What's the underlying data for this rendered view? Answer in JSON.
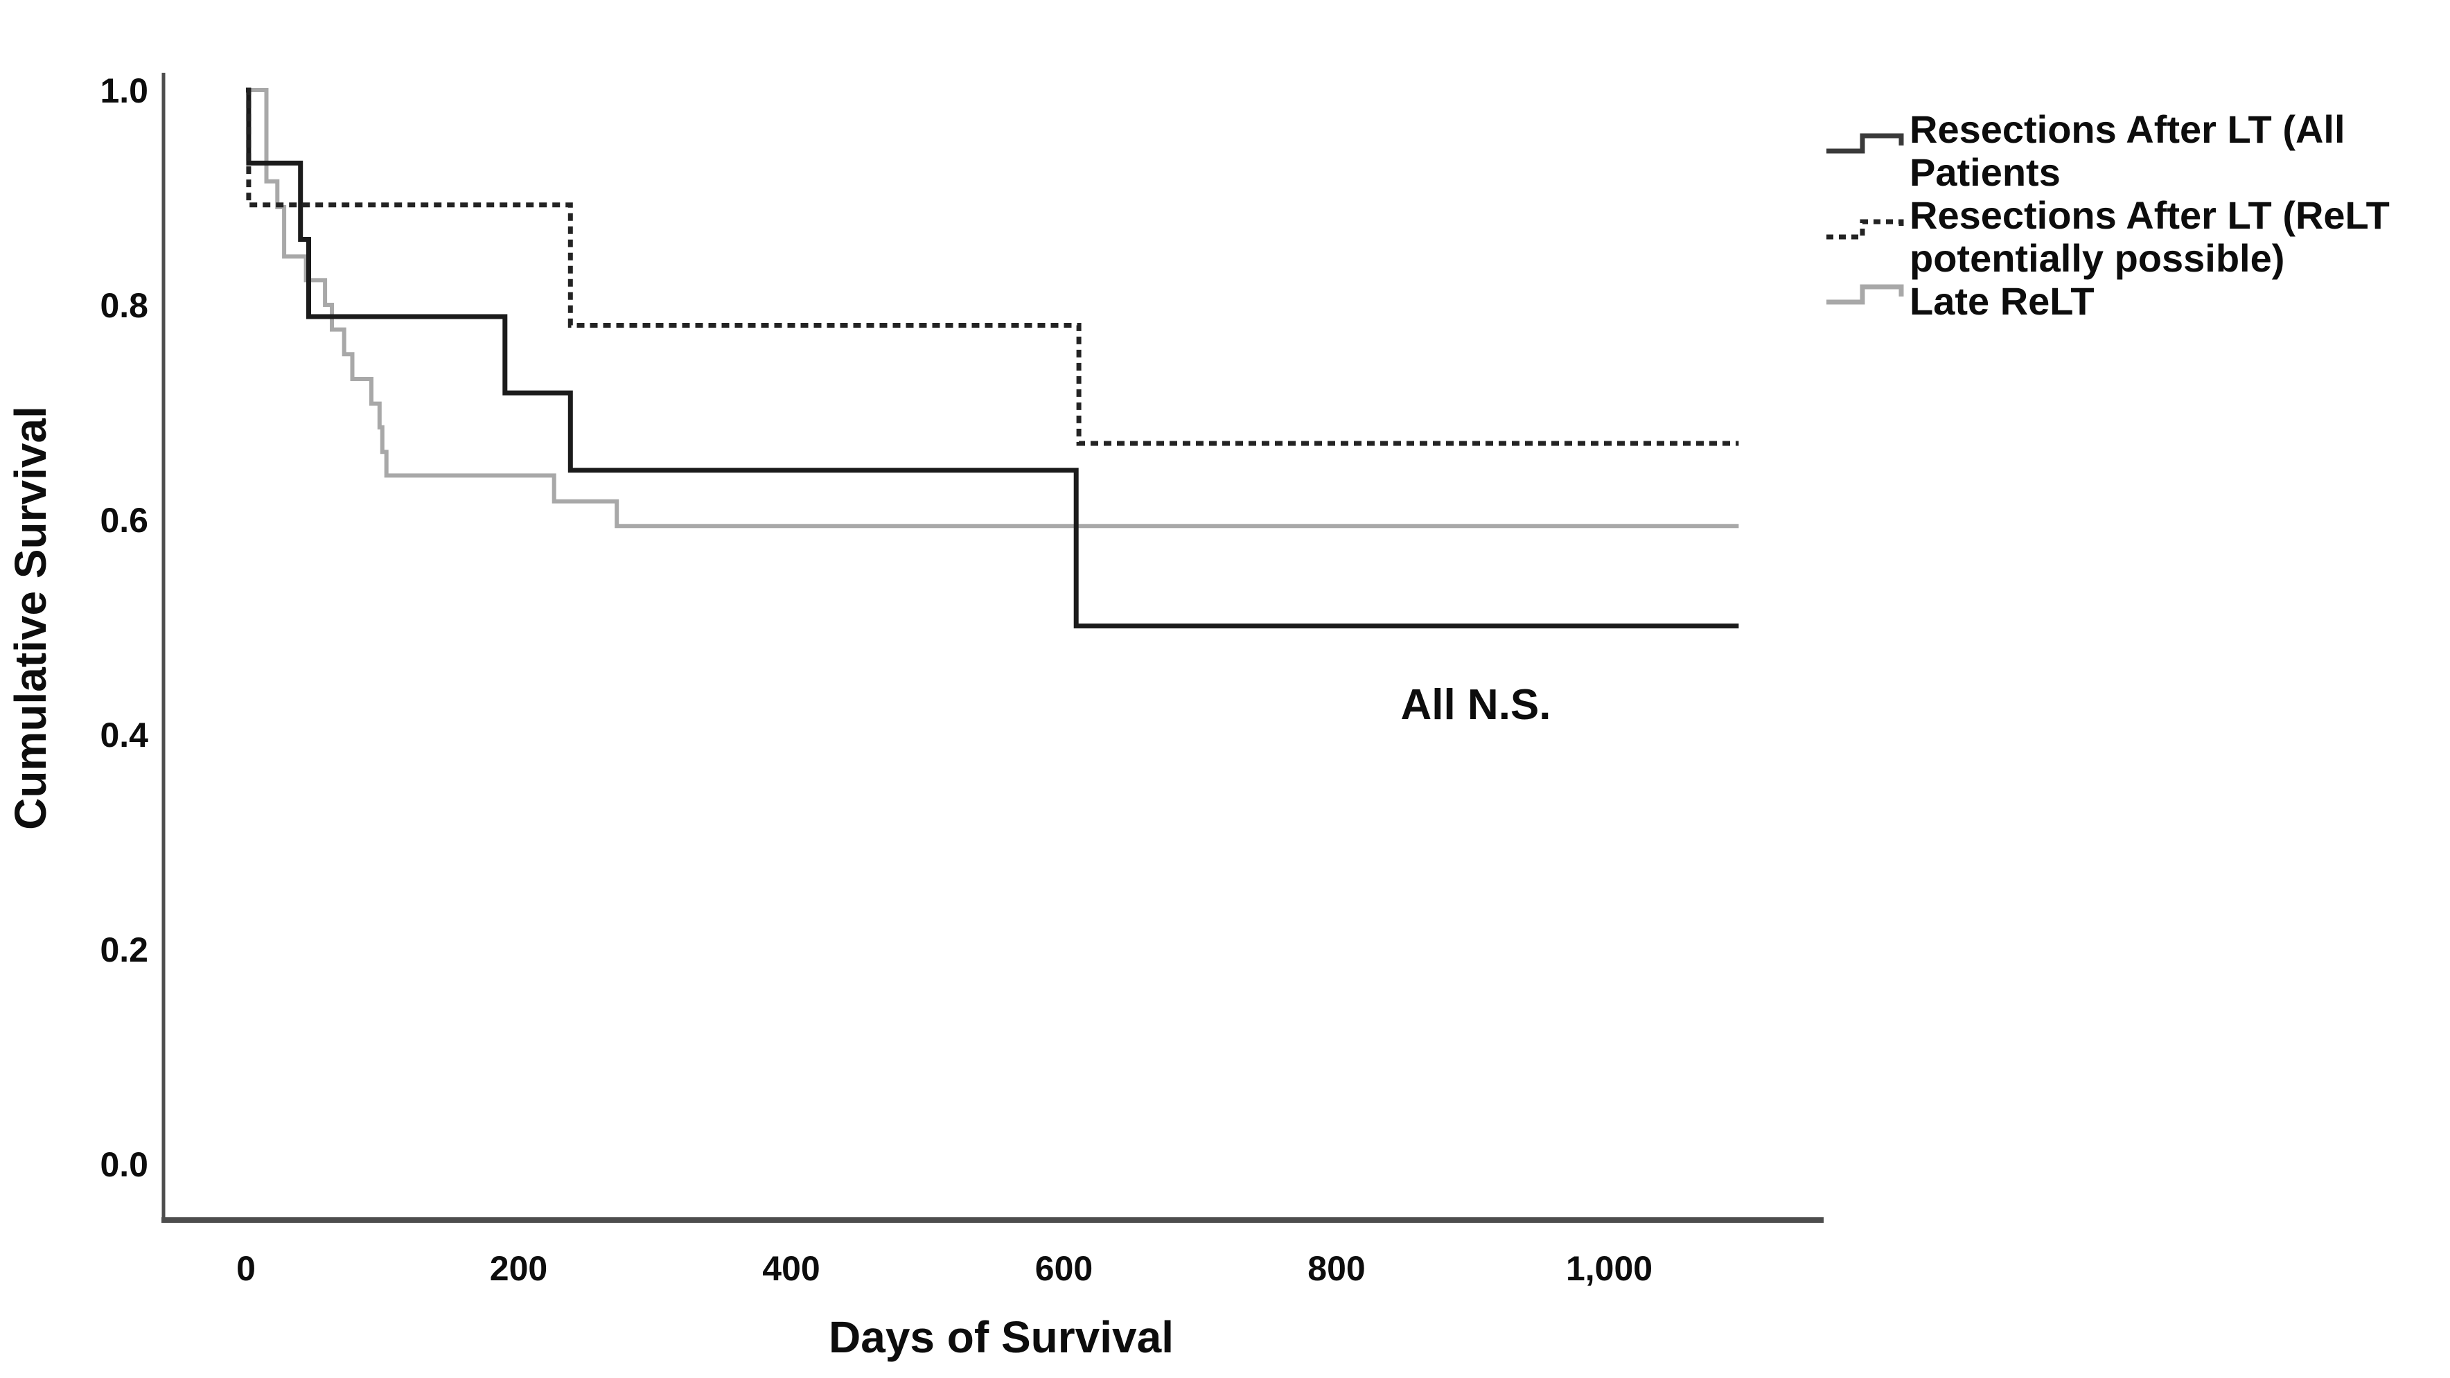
{
  "figure": {
    "background": "#ffffff",
    "axis_color": "#4d4d4d",
    "text_color": "#0d0d0d"
  },
  "chart_data": {
    "type": "line",
    "subtype": "kaplan-meier-step",
    "title": "",
    "xlabel": "Days of Survival",
    "ylabel": "Cumulative Survival",
    "xlim": [
      0,
      1155
    ],
    "ylim": [
      0.0,
      1.0
    ],
    "grid": false,
    "legend_position": "top-right-outside",
    "end_day": 1095,
    "xticks": {
      "values": [
        0,
        200,
        400,
        600,
        800,
        1000
      ],
      "labels": [
        "0",
        "200",
        "400",
        "600",
        "800",
        "1,000"
      ]
    },
    "yticks": {
      "values": [
        0.0,
        0.2,
        0.4,
        0.6,
        0.8,
        1.0
      ],
      "labels": [
        "0.0",
        "0.2",
        "0.4",
        "0.6",
        "0.8",
        "1.0"
      ]
    },
    "annotation": {
      "text": "All N.S.",
      "x_day": 902,
      "y_value": 0.43
    },
    "series": [
      {
        "name": "Resections After LT (All Patients",
        "legend_lines": [
          "Resections After LT (All",
          "Patients"
        ],
        "style": "solid",
        "color": "#1b1b1b",
        "legend_color": "#3a3a3a",
        "width": 7,
        "steps": [
          [
            0,
            1.0
          ],
          [
            2,
            0.932
          ],
          [
            40,
            0.861
          ],
          [
            46,
            0.789
          ],
          [
            190,
            0.718
          ],
          [
            238,
            0.646
          ],
          [
            609,
            0.501
          ]
        ]
      },
      {
        "name": "Resections After LT (ReLT potentially possible)",
        "legend_lines": [
          "Resections After LT (ReLT",
          "potentially possible)"
        ],
        "style": "dashed",
        "color": "#232323",
        "legend_color": "#232323",
        "width": 7,
        "steps": [
          [
            0,
            1.0
          ],
          [
            2,
            0.893
          ],
          [
            238,
            0.781
          ],
          [
            611,
            0.671
          ]
        ]
      },
      {
        "name": "Late ReLT",
        "legend_lines": [
          "Late ReLT"
        ],
        "style": "solid",
        "color": "#a8a8a8",
        "legend_color": "#a8a8a8",
        "width": 6,
        "steps": [
          [
            0,
            1.0
          ],
          [
            15,
            0.915
          ],
          [
            23,
            0.891
          ],
          [
            28,
            0.845
          ],
          [
            44,
            0.823
          ],
          [
            58,
            0.8
          ],
          [
            63,
            0.777
          ],
          [
            72,
            0.754
          ],
          [
            78,
            0.731
          ],
          [
            92,
            0.708
          ],
          [
            98,
            0.686
          ],
          [
            100,
            0.663
          ],
          [
            103,
            0.641
          ],
          [
            226,
            0.617
          ],
          [
            272,
            0.594
          ]
        ]
      }
    ]
  }
}
